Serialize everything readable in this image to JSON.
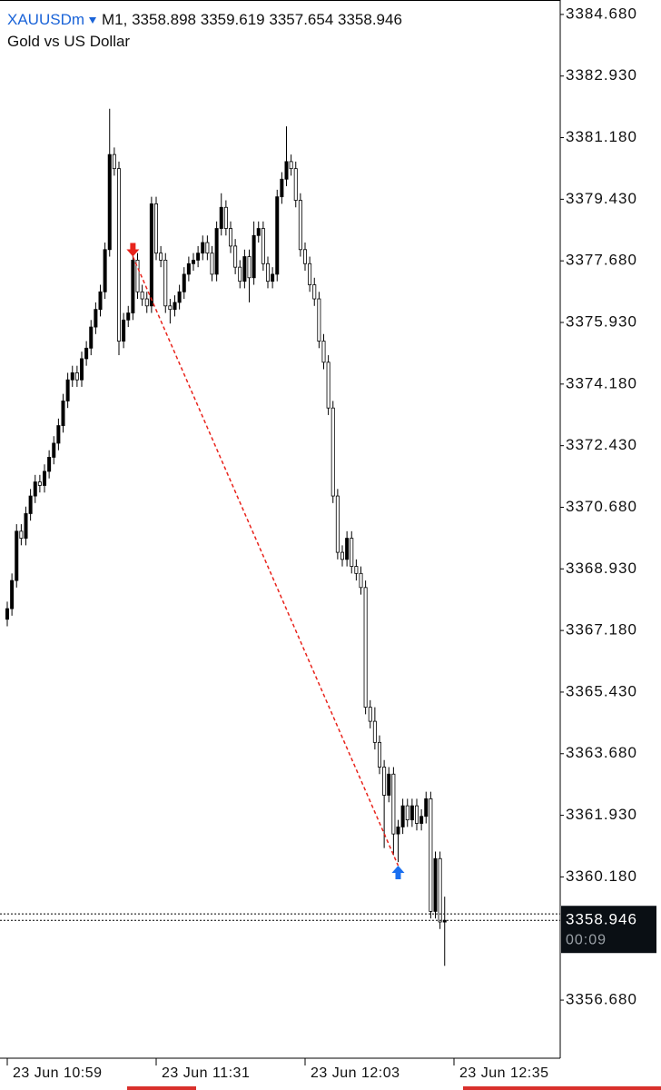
{
  "chart_data": {
    "type": "candlestick",
    "symbol": "XAUUSDm",
    "timeframe": "M1,",
    "header_ohlc": [
      3358.898,
      3359.619,
      3357.654,
      3358.946
    ],
    "subtitle": "Gold vs US Dollar",
    "open": [
      3367.5,
      3367.8,
      3368.6,
      3370.0,
      3369.8,
      3370.5,
      3371.0,
      3371.4,
      3371.3,
      3371.7,
      3372.1,
      3372.5,
      3373.0,
      3373.7,
      3374.3,
      3374.5,
      3374.3,
      3374.9,
      3375.2,
      3375.8,
      3376.3,
      3376.8,
      3378.0,
      3380.7,
      3380.3,
      3375.4,
      3376.0,
      3376.2,
      3377.7,
      3376.8,
      3376.6,
      3376.4,
      3379.3,
      3377.9,
      3377.7,
      3376.4,
      3376.3,
      3376.5,
      3376.8,
      3377.3,
      3377.6,
      3377.7,
      3377.9,
      3378.2,
      3377.9,
      3377.3,
      3378.6,
      3379.2,
      3378.6,
      3378.1,
      3377.5,
      3377.1,
      3377.8,
      3377.2,
      3378.4,
      3378.6,
      3377.6,
      3377.1,
      3377.3,
      3379.5,
      3380.0,
      3380.5,
      3380.3,
      3379.4,
      3378.0,
      3377.6,
      3377.0,
      3376.6,
      3375.4,
      3374.8,
      3373.5,
      3371.0,
      3369.4,
      3369.2,
      3369.8,
      3369.0,
      3368.8,
      3368.4,
      3365.0,
      3364.6,
      3364.0,
      3363.3,
      3362.5,
      3363.1,
      3361.4,
      3361.6,
      3362.2,
      3361.8,
      3362.2,
      3361.7,
      3361.9,
      3362.4,
      3359.2,
      3360.7,
      3358.898
    ],
    "high": [
      3368.0,
      3368.8,
      3370.2,
      3370.2,
      3370.7,
      3371.2,
      3371.6,
      3371.6,
      3371.9,
      3372.3,
      3372.7,
      3373.2,
      3373.9,
      3374.5,
      3374.7,
      3374.7,
      3375.1,
      3375.4,
      3376.0,
      3376.5,
      3377.0,
      3378.2,
      3382.0,
      3380.9,
      3380.5,
      3376.2,
      3376.4,
      3377.9,
      3377.9,
      3377.0,
      3376.8,
      3379.5,
      3379.5,
      3378.1,
      3377.9,
      3376.6,
      3376.7,
      3377.0,
      3377.5,
      3377.8,
      3377.9,
      3378.1,
      3378.4,
      3378.4,
      3378.1,
      3378.8,
      3379.6,
      3379.4,
      3378.8,
      3378.3,
      3377.7,
      3378.0,
      3378.0,
      3378.8,
      3378.8,
      3378.8,
      3377.8,
      3377.5,
      3379.7,
      3380.2,
      3381.5,
      3380.7,
      3380.5,
      3379.6,
      3378.2,
      3377.8,
      3377.2,
      3376.8,
      3375.6,
      3375.0,
      3373.7,
      3371.2,
      3369.6,
      3370.0,
      3370.0,
      3369.2,
      3369.0,
      3368.6,
      3365.2,
      3365.0,
      3364.2,
      3363.5,
      3363.3,
      3363.3,
      3361.8,
      3362.4,
      3362.4,
      3362.4,
      3362.4,
      3362.1,
      3362.6,
      3362.6,
      3360.9,
      3360.9,
      3359.619
    ],
    "low": [
      3367.3,
      3367.6,
      3368.4,
      3369.6,
      3369.6,
      3370.3,
      3370.8,
      3371.1,
      3371.1,
      3371.5,
      3371.9,
      3372.3,
      3372.8,
      3373.5,
      3374.1,
      3374.1,
      3374.1,
      3374.7,
      3375.0,
      3375.6,
      3376.1,
      3376.6,
      3377.8,
      3380.1,
      3375.0,
      3375.2,
      3375.8,
      3376.0,
      3376.6,
      3376.4,
      3376.2,
      3376.2,
      3377.7,
      3377.5,
      3376.2,
      3375.9,
      3376.1,
      3376.3,
      3376.6,
      3377.1,
      3377.4,
      3377.5,
      3377.7,
      3377.7,
      3377.1,
      3377.1,
      3378.4,
      3378.4,
      3377.9,
      3377.3,
      3376.9,
      3376.9,
      3376.5,
      3377.0,
      3378.2,
      3377.4,
      3376.9,
      3376.9,
      3377.1,
      3379.3,
      3379.8,
      3380.1,
      3379.2,
      3377.8,
      3377.4,
      3376.8,
      3376.4,
      3375.2,
      3374.6,
      3373.3,
      3370.8,
      3369.2,
      3369.0,
      3369.0,
      3368.8,
      3368.6,
      3368.2,
      3364.8,
      3364.4,
      3363.8,
      3363.1,
      3361.0,
      3362.3,
      3360.8,
      3360.6,
      3361.4,
      3361.6,
      3361.6,
      3361.5,
      3361.5,
      3361.7,
      3359.0,
      3359.0,
      3358.7,
      3357.654
    ],
    "close": [
      3367.8,
      3368.6,
      3370.0,
      3369.8,
      3370.5,
      3371.0,
      3371.4,
      3371.3,
      3371.7,
      3372.1,
      3372.5,
      3373.0,
      3373.7,
      3374.3,
      3374.5,
      3374.3,
      3374.9,
      3375.2,
      3375.8,
      3376.3,
      3376.8,
      3378.0,
      3380.7,
      3380.3,
      3375.4,
      3376.0,
      3376.2,
      3377.7,
      3376.8,
      3376.6,
      3376.4,
      3379.3,
      3377.9,
      3377.7,
      3376.4,
      3376.3,
      3376.5,
      3376.8,
      3377.3,
      3377.6,
      3377.7,
      3377.9,
      3378.2,
      3377.9,
      3377.3,
      3378.6,
      3379.2,
      3378.6,
      3378.1,
      3377.5,
      3377.1,
      3377.8,
      3377.2,
      3378.4,
      3378.6,
      3377.6,
      3377.1,
      3377.3,
      3379.5,
      3380.0,
      3380.5,
      3380.3,
      3379.4,
      3378.0,
      3377.6,
      3377.0,
      3376.6,
      3375.4,
      3374.8,
      3373.5,
      3371.0,
      3369.4,
      3369.2,
      3369.8,
      3369.0,
      3368.8,
      3368.4,
      3365.0,
      3364.6,
      3364.0,
      3363.3,
      3362.5,
      3363.1,
      3361.4,
      3361.6,
      3362.2,
      3361.8,
      3362.2,
      3361.7,
      3361.9,
      3362.4,
      3359.2,
      3360.7,
      3358.9,
      3358.946
    ],
    "bull_color": "#000000",
    "bear_color": "#ffffff",
    "ylim": [
      3355.03,
      3385.09
    ],
    "yticks": [
      {
        "value": 3384.68,
        "label": "3384.680"
      },
      {
        "value": 3382.93,
        "label": "3382.930"
      },
      {
        "value": 3381.18,
        "label": "3381.180"
      },
      {
        "value": 3379.43,
        "label": "3379.430"
      },
      {
        "value": 3377.68,
        "label": "3377.680"
      },
      {
        "value": 3375.93,
        "label": "3375.930"
      },
      {
        "value": 3374.18,
        "label": "3374.180"
      },
      {
        "value": 3372.43,
        "label": "3372.430"
      },
      {
        "value": 3370.68,
        "label": "3370.680"
      },
      {
        "value": 3368.93,
        "label": "3368.930"
      },
      {
        "value": 3367.18,
        "label": "3367.180"
      },
      {
        "value": 3365.43,
        "label": "3365.430"
      },
      {
        "value": 3363.68,
        "label": "3363.680"
      },
      {
        "value": 3361.93,
        "label": "3361.930"
      },
      {
        "value": 3360.18,
        "label": "3360.180"
      },
      {
        "value": 3356.68,
        "label": "3356.680"
      }
    ],
    "time_ticks": [
      {
        "index": 0,
        "label": "23 Jun 10:59"
      },
      {
        "index": 32,
        "label": "23 Jun 11:31"
      },
      {
        "index": 64,
        "label": "23 Jun 12:03"
      },
      {
        "index": 96,
        "label": "23 Jun 12:35"
      }
    ],
    "sell_signal": {
      "index": 27,
      "price": 3377.8,
      "color": "#e8231b"
    },
    "buy_signal": {
      "index": 84,
      "price": 3360.5,
      "color": "#1a6ff0"
    },
    "ask": 3359.13,
    "bid": {
      "value": 3358.946,
      "timer": "00:09"
    }
  }
}
